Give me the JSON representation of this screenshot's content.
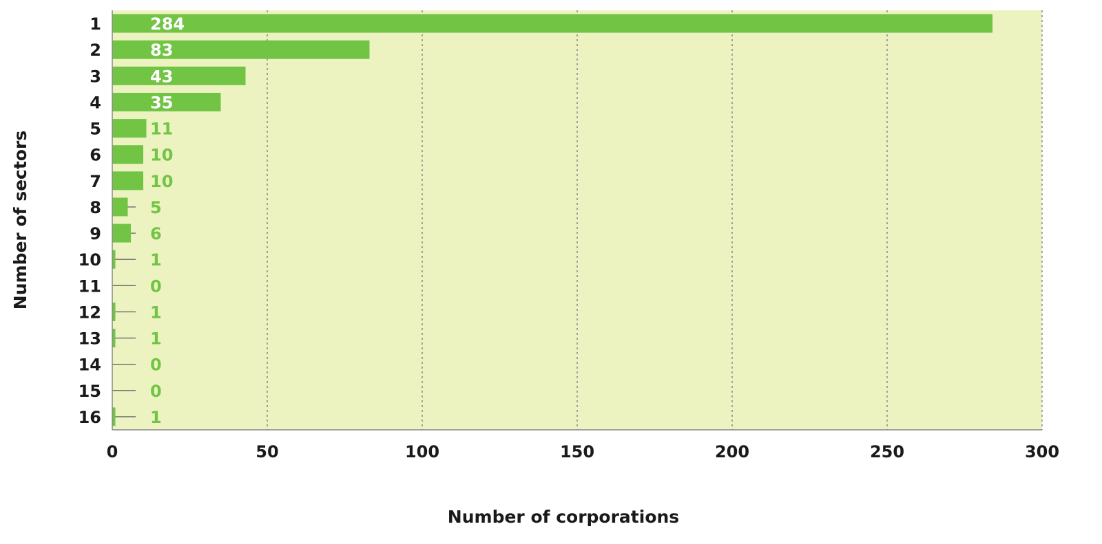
{
  "chart_data": {
    "type": "bar",
    "orientation": "horizontal",
    "categories": [
      "1",
      "2",
      "3",
      "4",
      "5",
      "6",
      "7",
      "8",
      "9",
      "10",
      "11",
      "12",
      "13",
      "14",
      "15",
      "16"
    ],
    "values": [
      284,
      83,
      43,
      35,
      11,
      10,
      10,
      5,
      6,
      1,
      0,
      1,
      1,
      0,
      0,
      1
    ],
    "data_labels": [
      "284",
      "83",
      "43",
      "35",
      "11",
      "10",
      "10",
      "5",
      "6",
      "1",
      "0",
      "1",
      "1",
      "0",
      "0",
      "1"
    ],
    "xlabel": "Number of corporations",
    "ylabel": "Number of sectors",
    "xlim": [
      0,
      300
    ],
    "xticks": [
      "0",
      "50",
      "100",
      "150",
      "200",
      "250",
      "300"
    ],
    "grid": "vertical dotted",
    "colors": {
      "plot_background": "#ecf3c0",
      "bar": "#72c444",
      "label_inside": "#ffffff",
      "label_outside": "#72c444",
      "grid": "#7a7a7a",
      "axis": "#888888"
    }
  }
}
